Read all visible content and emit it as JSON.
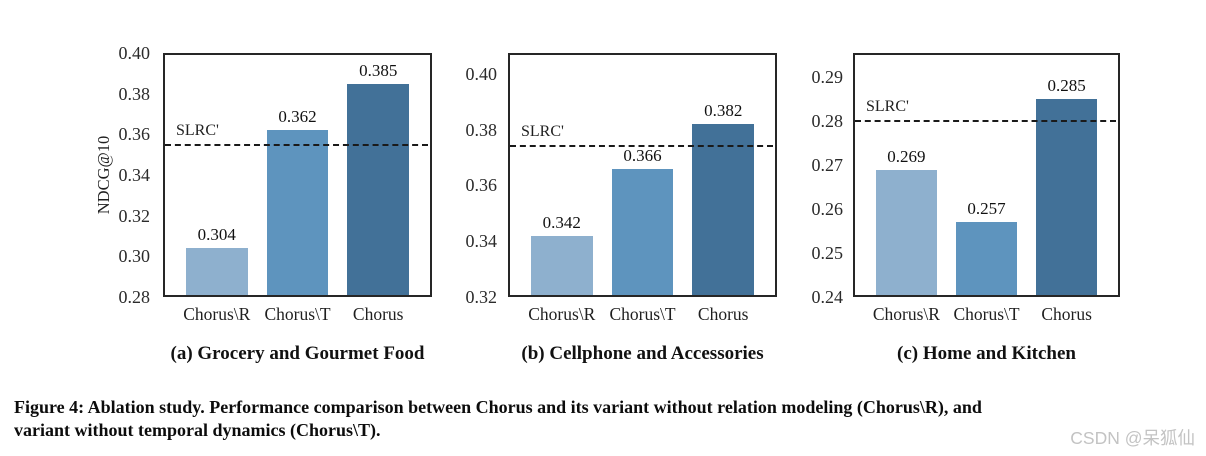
{
  "figure": {
    "caption_lines": [
      "Figure 4: Ablation study. Performance comparison between Chorus and its variant without relation modeling (Chorus\\R), and",
      "variant without temporal dynamics (Chorus\\T)."
    ],
    "watermark": "CSDN @呆狐仙"
  },
  "colors": {
    "bar_light": "#8eb0ce",
    "bar_medium": "#5e94be",
    "bar_dark": "#427198",
    "axis_border": "#262626",
    "ref_line": "#1a1a1a",
    "watermark": "#c3c3c3"
  },
  "chart_data": [
    {
      "type": "bar",
      "subtitle": "(a) Grocery and Gourmet Food",
      "ylabel": "NDCG@10",
      "categories": [
        "Chorus\\R",
        "Chorus\\T",
        "Chorus"
      ],
      "values": [
        0.304,
        0.362,
        0.385
      ],
      "bar_colors": [
        "#8eb0ce",
        "#5e94be",
        "#427198"
      ],
      "yticks": [
        0.28,
        0.3,
        0.32,
        0.34,
        0.36,
        0.38,
        0.4
      ],
      "ylim": [
        0.28,
        0.4
      ],
      "grid": false,
      "ref_line": {
        "label": "SLRC'",
        "value": 0.355,
        "style": "dashed"
      }
    },
    {
      "type": "bar",
      "subtitle": "(b) Cellphone and Accessories",
      "ylabel": "",
      "categories": [
        "Chorus\\R",
        "Chorus\\T",
        "Chorus"
      ],
      "values": [
        0.342,
        0.366,
        0.382
      ],
      "bar_colors": [
        "#8eb0ce",
        "#5e94be",
        "#427198"
      ],
      "yticks": [
        0.32,
        0.34,
        0.36,
        0.38,
        0.4
      ],
      "ylim": [
        0.32,
        0.4075
      ],
      "grid": false,
      "ref_line": {
        "label": "SLRC'",
        "value": 0.374,
        "style": "dashed"
      }
    },
    {
      "type": "bar",
      "subtitle": "(c) Home and Kitchen",
      "ylabel": "",
      "categories": [
        "Chorus\\R",
        "Chorus\\T",
        "Chorus"
      ],
      "values": [
        0.269,
        0.257,
        0.285
      ],
      "bar_colors": [
        "#8eb0ce",
        "#5e94be",
        "#427198"
      ],
      "yticks": [
        0.24,
        0.25,
        0.26,
        0.27,
        0.28,
        0.29
      ],
      "ylim": [
        0.24,
        0.2955
      ],
      "grid": false,
      "ref_line": {
        "label": "SLRC'",
        "value": 0.28,
        "style": "dashed"
      }
    }
  ]
}
